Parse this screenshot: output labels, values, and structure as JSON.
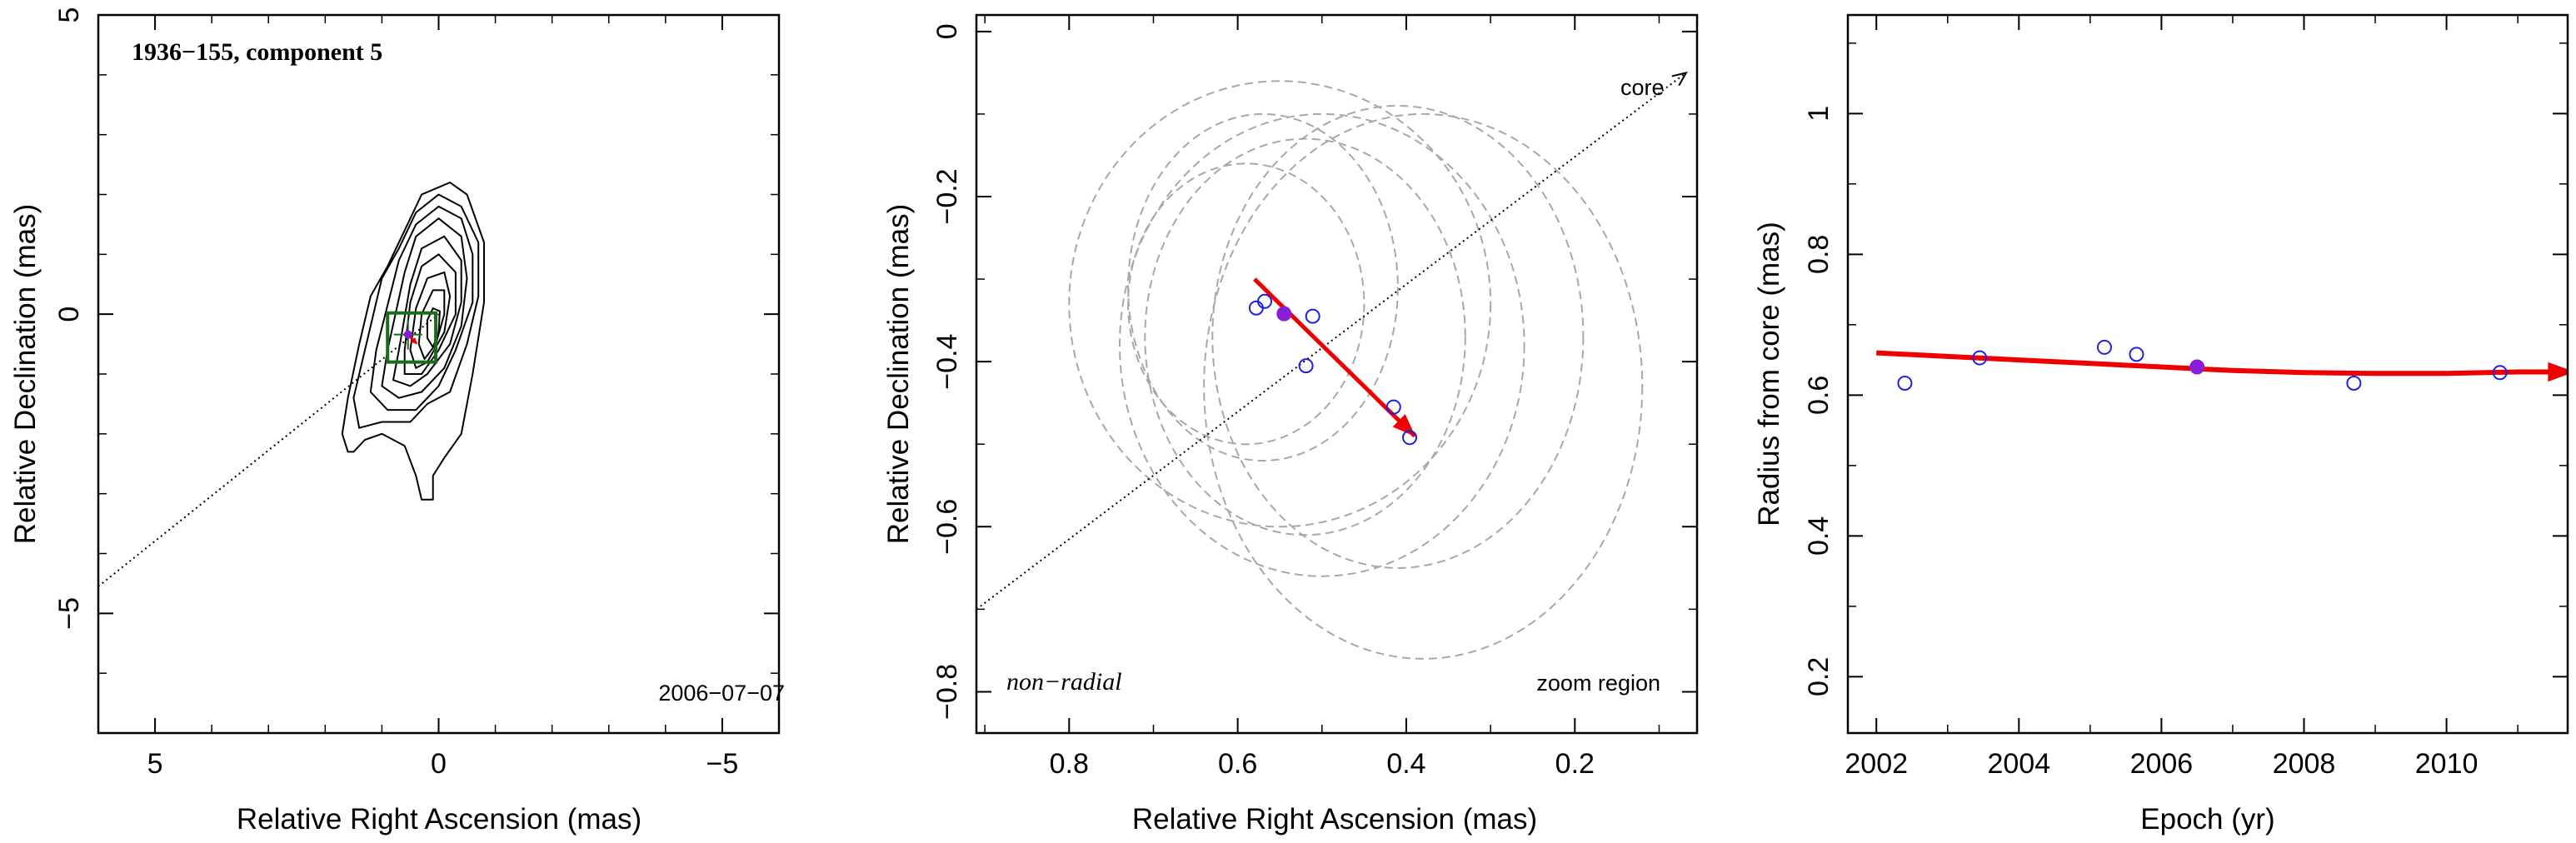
{
  "chart_data": [
    {
      "type": "scatter",
      "title": "1936−155, component 5",
      "xlabel": "Relative Right Ascension (mas)",
      "ylabel": "Relative Declination (mas)",
      "xlim": [
        6,
        -6
      ],
      "ylim": [
        -7,
        5
      ],
      "xticks": [
        5,
        0,
        -5
      ],
      "xtick_labels": [
        "5",
        "0",
        "−5"
      ],
      "yticks": [
        -5,
        0,
        5
      ],
      "ytick_labels": [
        "−5",
        "0",
        "5"
      ],
      "date_label": "2006−07−07",
      "contours": [
        {
          "level": 1,
          "points": [
            [
              1.4,
              -0.5
            ],
            [
              1.6,
              -1.4
            ],
            [
              1.7,
              -2.0
            ],
            [
              1.6,
              -2.3
            ],
            [
              1.5,
              -2.3
            ],
            [
              1.3,
              -2.1
            ],
            [
              1.0,
              -2.0
            ],
            [
              0.6,
              -2.2
            ],
            [
              0.4,
              -2.7
            ],
            [
              0.3,
              -3.1
            ],
            [
              0.1,
              -3.1
            ],
            [
              0.1,
              -2.7
            ],
            [
              -0.1,
              -2.4
            ],
            [
              -0.4,
              -2.0
            ],
            [
              -0.6,
              -1.0
            ],
            [
              -0.8,
              0.2
            ],
            [
              -0.8,
              1.2
            ],
            [
              -0.5,
              2.0
            ],
            [
              -0.2,
              2.2
            ],
            [
              0.3,
              2.0
            ],
            [
              0.6,
              1.4
            ],
            [
              0.9,
              0.8
            ],
            [
              1.2,
              0.3
            ],
            [
              1.4,
              -0.5
            ]
          ]
        },
        {
          "level": 2,
          "points": [
            [
              1.3,
              -0.6
            ],
            [
              1.5,
              -1.4
            ],
            [
              1.4,
              -1.9
            ],
            [
              1.0,
              -1.8
            ],
            [
              0.5,
              -1.8
            ],
            [
              0.2,
              -1.5
            ],
            [
              -0.2,
              -1.3
            ],
            [
              -0.5,
              -0.5
            ],
            [
              -0.7,
              0.3
            ],
            [
              -0.7,
              1.2
            ],
            [
              -0.4,
              1.8
            ],
            [
              0.0,
              2.0
            ],
            [
              0.4,
              1.7
            ],
            [
              0.7,
              1.1
            ],
            [
              1.0,
              0.6
            ],
            [
              1.3,
              -0.6
            ]
          ]
        },
        {
          "level": 3,
          "points": [
            [
              1.1,
              -0.6
            ],
            [
              1.2,
              -1.3
            ],
            [
              0.9,
              -1.6
            ],
            [
              0.4,
              -1.6
            ],
            [
              0.0,
              -1.2
            ],
            [
              -0.3,
              -0.6
            ],
            [
              -0.6,
              0.2
            ],
            [
              -0.6,
              1.0
            ],
            [
              -0.4,
              1.6
            ],
            [
              0.0,
              1.8
            ],
            [
              0.4,
              1.5
            ],
            [
              0.7,
              0.9
            ],
            [
              1.1,
              -0.6
            ]
          ]
        },
        {
          "level": 4,
          "points": [
            [
              0.9,
              -0.6
            ],
            [
              1.0,
              -1.2
            ],
            [
              0.7,
              -1.4
            ],
            [
              0.3,
              -1.3
            ],
            [
              -0.1,
              -0.9
            ],
            [
              -0.4,
              -0.2
            ],
            [
              -0.5,
              0.6
            ],
            [
              -0.4,
              1.3
            ],
            [
              0.0,
              1.6
            ],
            [
              0.4,
              1.3
            ],
            [
              0.6,
              0.7
            ],
            [
              0.9,
              -0.6
            ]
          ]
        },
        {
          "level": 5,
          "points": [
            [
              0.7,
              -0.6
            ],
            [
              0.8,
              -1.1
            ],
            [
              0.5,
              -1.2
            ],
            [
              0.2,
              -1.0
            ],
            [
              -0.2,
              -0.5
            ],
            [
              -0.4,
              0.2
            ],
            [
              -0.4,
              0.9
            ],
            [
              -0.1,
              1.3
            ],
            [
              0.3,
              1.1
            ],
            [
              0.5,
              0.5
            ],
            [
              0.7,
              -0.6
            ]
          ]
        },
        {
          "level": 6,
          "points": [
            [
              0.6,
              -0.6
            ],
            [
              0.6,
              -1.0
            ],
            [
              0.3,
              -1.0
            ],
            [
              0.0,
              -0.6
            ],
            [
              -0.3,
              0.0
            ],
            [
              -0.3,
              0.7
            ],
            [
              0.0,
              1.0
            ],
            [
              0.3,
              0.8
            ],
            [
              0.5,
              0.2
            ],
            [
              0.6,
              -0.6
            ]
          ]
        },
        {
          "level": 7,
          "points": [
            [
              0.5,
              -0.6
            ],
            [
              0.4,
              -0.9
            ],
            [
              0.2,
              -0.8
            ],
            [
              -0.1,
              -0.3
            ],
            [
              -0.2,
              0.3
            ],
            [
              -0.1,
              0.7
            ],
            [
              0.2,
              0.6
            ],
            [
              0.4,
              0.1
            ],
            [
              0.5,
              -0.6
            ]
          ]
        },
        {
          "level": 8,
          "points": [
            [
              0.35,
              -0.5
            ],
            [
              0.25,
              -0.75
            ],
            [
              0.05,
              -0.5
            ],
            [
              -0.1,
              0.0
            ],
            [
              -0.1,
              0.4
            ],
            [
              0.1,
              0.4
            ],
            [
              0.3,
              0.0
            ],
            [
              0.35,
              -0.5
            ]
          ]
        },
        {
          "level": 9,
          "points": [
            [
              0.2,
              -0.4
            ],
            [
              0.1,
              -0.55
            ],
            [
              0.0,
              -0.3
            ],
            [
              -0.02,
              0.05
            ],
            [
              0.1,
              0.1
            ],
            [
              0.2,
              -0.1
            ],
            [
              0.2,
              -0.4
            ]
          ]
        }
      ],
      "zoom_box": {
        "x": [
          0.9,
          0.05
        ],
        "y": [
          -0.8,
          0.02
        ]
      },
      "jet_line": {
        "x": [
          6,
          0
        ],
        "y": [
          -4.55,
          0
        ]
      },
      "component_point": {
        "x": 0.54,
        "y": -0.34
      },
      "component_cross_size": 0.25,
      "motion_arrow": {
        "x": [
          0.58,
          0.39
        ],
        "y": [
          -0.3,
          -0.49
        ]
      },
      "colors": {
        "contour": "#000000",
        "box": "#1a6b1a",
        "arrow": "#ee0000",
        "point": "#8a1ed8",
        "line": "#000000"
      }
    },
    {
      "type": "scatter",
      "xlabel": "Relative Right Ascension (mas)",
      "ylabel": "Relative Declination (mas)",
      "xlim": [
        0.91,
        0.055
      ],
      "ylim": [
        -0.85,
        0.02
      ],
      "xticks": [
        0.8,
        0.6,
        0.4,
        0.2
      ],
      "xtick_labels": [
        "0.8",
        "0.6",
        "0.4",
        "0.2"
      ],
      "yticks": [
        -0.8,
        -0.6,
        -0.4,
        -0.2,
        0
      ],
      "ytick_labels": [
        "−0.8",
        "−0.6",
        "−0.4",
        "−0.2",
        "0"
      ],
      "core_label": "core",
      "motion_label": "non−radial",
      "zoom_label": "zoom region",
      "points": [
        {
          "x": 0.578,
          "y": -0.335
        },
        {
          "x": 0.568,
          "y": -0.327
        },
        {
          "x": 0.511,
          "y": -0.345
        },
        {
          "x": 0.519,
          "y": -0.405
        },
        {
          "x": 0.415,
          "y": -0.455
        },
        {
          "x": 0.396,
          "y": -0.492
        }
      ],
      "highlight_point": {
        "x": 0.545,
        "y": -0.342
      },
      "ellipses": [
        {
          "cx": 0.59,
          "cy": -0.33,
          "rx": 0.14,
          "ry": 0.17
        },
        {
          "cx": 0.57,
          "cy": -0.31,
          "rx": 0.16,
          "ry": 0.21
        },
        {
          "cx": 0.52,
          "cy": -0.37,
          "rx": 0.19,
          "ry": 0.24
        },
        {
          "cx": 0.5,
          "cy": -0.38,
          "rx": 0.24,
          "ry": 0.28
        },
        {
          "cx": 0.55,
          "cy": -0.33,
          "rx": 0.25,
          "ry": 0.27
        },
        {
          "cx": 0.41,
          "cy": -0.37,
          "rx": 0.22,
          "ry": 0.28
        },
        {
          "cx": 0.38,
          "cy": -0.43,
          "rx": 0.26,
          "ry": 0.33
        }
      ],
      "jet_line": {
        "x": [
          0.91,
          0.068
        ],
        "y": [
          -0.7,
          -0.05
        ]
      },
      "motion_arrow": {
        "x": [
          0.58,
          0.39
        ],
        "y": [
          -0.3,
          -0.49
        ]
      },
      "colors": {
        "points": "#2020e0",
        "highlight": "#8a1ed8",
        "arrow": "#ee0000",
        "ellipses": "#a8a8a8",
        "line": "#000000"
      }
    },
    {
      "type": "scatter",
      "xlabel": "Epoch (yr)",
      "ylabel": "Radius from core (mas)",
      "xlim": [
        2001.6,
        2011.7
      ],
      "ylim": [
        0.12,
        1.14
      ],
      "xticks": [
        2002,
        2004,
        2006,
        2008,
        2010
      ],
      "xtick_labels": [
        "2002",
        "2004",
        "2006",
        "2008",
        "2010"
      ],
      "yticks": [
        0.2,
        0.4,
        0.6,
        0.8,
        1.0
      ],
      "ytick_labels": [
        "0.2",
        "0.4",
        "0.6",
        "0.8",
        "1"
      ],
      "points": [
        {
          "x": 2002.4,
          "y": 0.617
        },
        {
          "x": 2003.45,
          "y": 0.653
        },
        {
          "x": 2005.2,
          "y": 0.668
        },
        {
          "x": 2005.65,
          "y": 0.658
        },
        {
          "x": 2008.7,
          "y": 0.617
        },
        {
          "x": 2010.75,
          "y": 0.632
        }
      ],
      "highlight_point": {
        "x": 2006.5,
        "y": 0.64
      },
      "fit_curve": {
        "x": [
          2002.0,
          2003.0,
          2004.0,
          2005.0,
          2006.0,
          2007.0,
          2008.0,
          2009.0,
          2010.0,
          2011.0
        ],
        "y": [
          0.66,
          0.655,
          0.65,
          0.645,
          0.64,
          0.635,
          0.632,
          0.631,
          0.631,
          0.633
        ]
      },
      "fit_arrow_end": {
        "x": 2011.5,
        "y": 0.633
      },
      "colors": {
        "points": "#2020e0",
        "highlight": "#8a1ed8",
        "curve": "#ee0000"
      }
    }
  ]
}
